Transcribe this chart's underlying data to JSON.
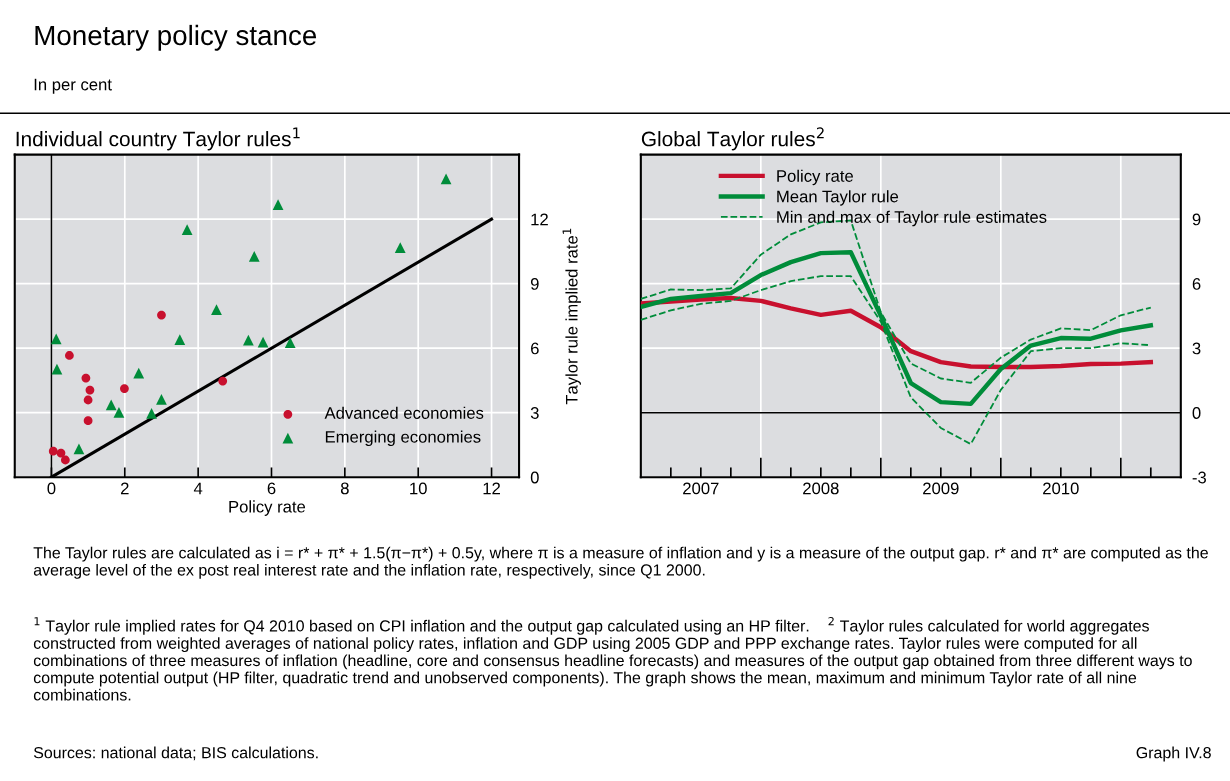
{
  "chart_data": [
    {
      "type": "scatter",
      "title": "Individual country Taylor rules$^{1}$",
      "xlabel": "Policy rate",
      "ylabel": "Taylor rule implied rate$^{1}$",
      "annotations": [
        "Monetary policy stance",
        "In per cent",
        "The Taylor rules are calculated as i = r* + π* + 1.5(π−π*) + 0.5y, where π is a measure of inflation and y is a measure of the output gap. r* and π* are computed as the average level of the ex post real interest rate and the inflation rate, respectively, since Q1 2000.",
        "$^{1}$ Taylor rule implied rates for Q4 2010 based on CPI inflation and the output gap calculated using an HP filter.    $^{2}$ Taylor rules calculated for world aggregates constructed from weighted averages of national policy rates, inflation and GDP using 2005 GDP and PPP exchange rates. Taylor rules were computed for all combinations of three measures of inflation (headline, core and consensus headline forecasts) and measures of the output gap obtained from three different ways to compute potential output (HP filter, quadratic trend and unobserved components). The graph shows the mean, maximum and minimum Taylor rate of all nine combinations.",
        "Sources: national data; BIS calculations.",
        "Graph IV.8"
      ],
      "series": [
        {
          "name": "Advanced economies",
          "color": "#c8102e",
          "marker": "circle",
          "x": [
            0.05,
            0.26,
            0.38,
            0.49,
            0.94,
            1.05,
            1.0,
            1.0,
            1.99,
            3.0,
            4.67
          ],
          "values": [
            1.21,
            1.12,
            0.8,
            5.66,
            4.61,
            4.05,
            3.59,
            2.63,
            4.12,
            7.54,
            4.47
          ]
        },
        {
          "name": "Emerging economies",
          "color": "#008c3a",
          "marker": "triangle",
          "x": [
            0.13,
            0.15,
            0.75,
            1.63,
            1.84,
            2.38,
            2.73,
            3.0,
            3.5,
            3.7,
            4.5,
            5.37,
            5.53,
            5.77,
            6.18,
            6.51,
            9.51,
            10.76
          ],
          "values": [
            6.43,
            5.03,
            1.32,
            3.36,
            3.01,
            4.84,
            2.97,
            3.62,
            6.4,
            11.51,
            7.79,
            6.37,
            10.27,
            6.28,
            12.67,
            6.26,
            10.68,
            13.87
          ]
        },
        {
          "type": "line",
          "color": "#000000",
          "marker": "none",
          "x": [
            0,
            12
          ],
          "values": [
            0,
            12
          ]
        }
      ],
      "xlim": [
        -1,
        12.75
      ],
      "ylim": [
        0,
        15
      ],
      "xticks": [
        0,
        2,
        4,
        6,
        8,
        10,
        12
      ],
      "yticks": [
        0,
        3,
        6,
        9,
        12
      ],
      "ref_lines": [
        {
          "axis": "x",
          "value": 0,
          "color": "#000000"
        }
      ],
      "grid": true,
      "legend": "bottom right"
    },
    {
      "type": "line",
      "title": "Global Taylor rules$^{2}$",
      "x": [
        2007.0,
        2007.25,
        2007.5,
        2007.75,
        2008.0,
        2008.25,
        2008.5,
        2008.75,
        2009.0,
        2009.25,
        2009.5,
        2009.75,
        2010.0,
        2010.25,
        2010.5,
        2010.75,
        2011.0,
        2011.25
      ],
      "series": [
        {
          "name": "Policy rate",
          "color": "#c8102e",
          "line_style": "solid",
          "values": [
            5.08,
            5.17,
            5.26,
            5.33,
            5.2,
            4.85,
            4.55,
            4.74,
            3.97,
            2.86,
            2.35,
            2.15,
            2.12,
            2.12,
            2.17,
            2.26,
            2.28,
            2.35
          ]
        },
        {
          "name": "Mean Taylor rule",
          "color": "#008c3a",
          "line_style": "solid",
          "values": [
            4.92,
            5.29,
            5.43,
            5.56,
            6.4,
            7.0,
            7.42,
            7.46,
            4.5,
            1.38,
            0.49,
            0.41,
            2.03,
            3.12,
            3.47,
            3.44,
            3.83,
            4.06
          ]
        },
        {
          "name": "Min and max of Taylor rule estimates",
          "color": "#008c3a",
          "line_style": "dashed",
          "values": [
            5.29,
            5.73,
            5.7,
            5.78,
            7.35,
            8.29,
            8.85,
            8.94,
            4.67,
            2.29,
            1.59,
            1.39,
            2.56,
            3.4,
            3.92,
            3.84,
            4.53,
            4.89
          ]
        },
        {
          "color": "#008c3a",
          "line_style": "dashed",
          "values": [
            4.32,
            4.76,
            5.06,
            5.2,
            5.7,
            6.12,
            6.35,
            6.35,
            4.23,
            0.71,
            -0.71,
            -1.46,
            1.06,
            2.86,
            3.0,
            3.0,
            3.23,
            3.14
          ]
        }
      ],
      "xlim": [
        2007.0,
        2011.5
      ],
      "ylim": [
        -3,
        12
      ],
      "xticks": [
        {
          "value": 2007.25,
          "label": null
        },
        {
          "value": 2007.5,
          "label": "2007"
        },
        {
          "value": 2007.75,
          "label": null
        },
        {
          "value": 2008,
          "label": null
        },
        {
          "value": 2008.25,
          "label": null
        },
        {
          "value": 2008.5,
          "label": "2008"
        },
        {
          "value": 2008.75,
          "label": null
        },
        {
          "value": 2009,
          "label": null
        },
        {
          "value": 2009.25,
          "label": null
        },
        {
          "value": 2009.5,
          "label": "2009"
        },
        {
          "value": 2009.75,
          "label": null
        },
        {
          "value": 2010,
          "label": null
        },
        {
          "value": 2010.25,
          "label": null
        },
        {
          "value": 2010.5,
          "label": "2010"
        },
        {
          "value": 2010.75,
          "label": null
        },
        {
          "value": 2011,
          "label": null
        },
        {
          "value": 2011.25,
          "label": null
        }
      ],
      "yticks": [
        -3,
        0,
        3,
        6,
        9
      ],
      "ref_lines": [
        {
          "axis": "y",
          "value": 0,
          "color": "#000000"
        }
      ],
      "grid": true,
      "legend": "top right"
    }
  ]
}
